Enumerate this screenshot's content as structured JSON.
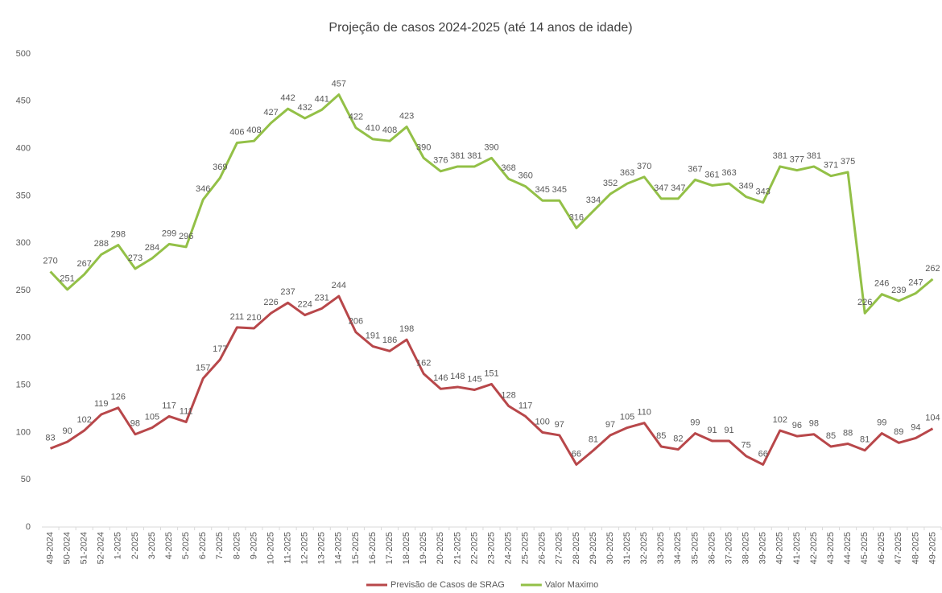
{
  "chart_data": {
    "type": "line",
    "title": "Projeção de casos 2024-2025 (até 14 anos de idade)",
    "categories": [
      "49-2024",
      "50-2024",
      "51-2024",
      "52-2024",
      "1-2025",
      "2-2025",
      "3-2025",
      "4-2025",
      "5-2025",
      "6-2025",
      "7-2025",
      "8-2025",
      "9-2025",
      "10-2025",
      "11-2025",
      "12-2025",
      "13-2025",
      "14-2025",
      "15-2025",
      "16-2025",
      "17-2025",
      "18-2025",
      "19-2025",
      "20-2025",
      "21-2025",
      "22-2025",
      "23-2025",
      "24-2025",
      "25-2025",
      "26-2025",
      "27-2025",
      "28-2025",
      "29-2025",
      "30-2025",
      "31-2025",
      "32-2025",
      "33-2025",
      "34-2025",
      "35-2025",
      "36-2025",
      "37-2025",
      "38-2025",
      "39-2025",
      "40-2025",
      "41-2025",
      "42-2025",
      "43-2025",
      "44-2025",
      "45-2025",
      "46-2025",
      "47-2025",
      "48-2025",
      "49-2025"
    ],
    "series": [
      {
        "name": "Previsão de Casos de SRAG",
        "color": "#b8474a",
        "values": [
          83,
          90,
          102,
          119,
          126,
          98,
          105,
          117,
          111,
          157,
          177,
          211,
          210,
          226,
          237,
          224,
          231,
          244,
          206,
          191,
          186,
          198,
          162,
          146,
          148,
          145,
          151,
          128,
          117,
          100,
          97,
          66,
          81,
          97,
          105,
          110,
          85,
          82,
          99,
          91,
          91,
          75,
          66,
          102,
          96,
          98,
          85,
          88,
          81,
          99,
          89,
          94,
          104
        ]
      },
      {
        "name": "Valor Maximo",
        "color": "#93c047",
        "values": [
          270,
          251,
          267,
          288,
          298,
          273,
          284,
          299,
          296,
          346,
          369,
          406,
          408,
          427,
          442,
          432,
          441,
          457,
          422,
          410,
          408,
          423,
          390,
          376,
          381,
          381,
          390,
          368,
          360,
          345,
          345,
          316,
          334,
          352,
          363,
          370,
          347,
          347,
          367,
          361,
          363,
          349,
          343,
          381,
          377,
          381,
          371,
          375,
          226,
          246,
          239,
          247,
          262
        ]
      }
    ],
    "ylim": [
      0,
      500
    ],
    "yticks": [
      0,
      50,
      100,
      150,
      200,
      250,
      300,
      350,
      400,
      450,
      500
    ],
    "legend": "bottom"
  }
}
